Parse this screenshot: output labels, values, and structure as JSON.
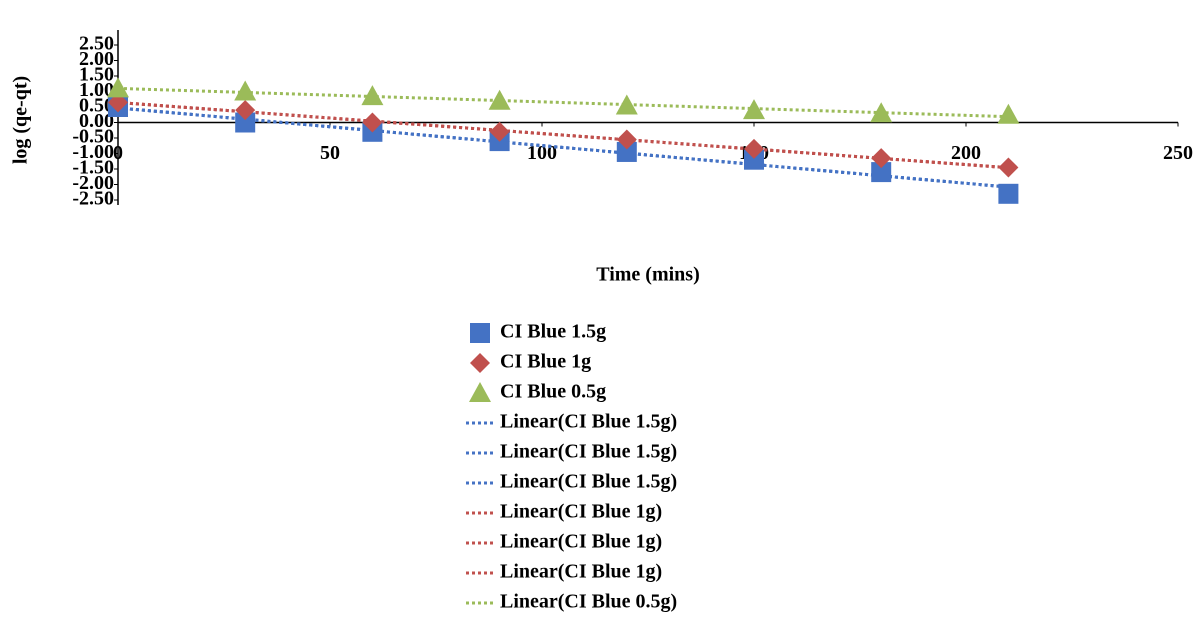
{
  "chart_data": {
    "type": "scatter",
    "x_label": "Time (mins)",
    "y_label": "log (qe-qt)",
    "xlim": [
      0,
      250
    ],
    "xticks": [
      0,
      50,
      100,
      150,
      200,
      250
    ],
    "ylim": [
      -2.5,
      2.5
    ],
    "yticks": [
      {
        "value": 2.5,
        "label": "2.50"
      },
      {
        "value": 2,
        "label": "2.00"
      },
      {
        "value": 1.5,
        "label": "1.50"
      },
      {
        "value": 1,
        "label": "1.00"
      },
      {
        "value": 0.5,
        "label": "0.50"
      },
      {
        "value": 0,
        "label": "0.00"
      },
      {
        "value": -0.5,
        "label": "-0.50"
      },
      {
        "value": -1,
        "label": "-1.00"
      },
      {
        "value": -1.5,
        "label": "-1.50"
      },
      {
        "value": -2,
        "label": "-2.00"
      },
      {
        "value": -2.5,
        "label": "-2.50"
      }
    ],
    "x": [
      0,
      30,
      60,
      90,
      120,
      150,
      180,
      210
    ],
    "series": [
      {
        "name": "CI Blue 1.5g",
        "color": "#4472c4",
        "marker": "square",
        "values": [
          0.5,
          0.0,
          -0.3,
          -0.6,
          -0.95,
          -1.2,
          -1.6,
          -2.3
        ]
      },
      {
        "name": "CI Blue 1g",
        "color": "#c0504d",
        "marker": "diamond",
        "values": [
          0.65,
          0.4,
          0.0,
          -0.3,
          -0.55,
          -0.85,
          -1.15,
          -1.45
        ]
      },
      {
        "name": "CI Blue 0.5g",
        "color": "#9bbb59",
        "marker": "triangle",
        "values": [
          1.1,
          1.0,
          0.85,
          0.7,
          0.55,
          0.4,
          0.3,
          0.25
        ]
      }
    ],
    "trendlines": [
      {
        "name": "Linear(CI Blue 1.5g)",
        "color": "#4472c4"
      },
      {
        "name": "Linear(CI Blue 1.5g)",
        "color": "#4472c4"
      },
      {
        "name": "Linear(CI Blue 1.5g)",
        "color": "#4472c4"
      },
      {
        "name": "Linear(CI Blue 1g)",
        "color": "#c0504d"
      },
      {
        "name": "Linear(CI Blue 1g)",
        "color": "#c0504d"
      },
      {
        "name": "Linear(CI Blue 1g)",
        "color": "#c0504d"
      },
      {
        "name": "Linear(CI Blue 0.5g)",
        "color": "#9bbb59"
      }
    ]
  }
}
